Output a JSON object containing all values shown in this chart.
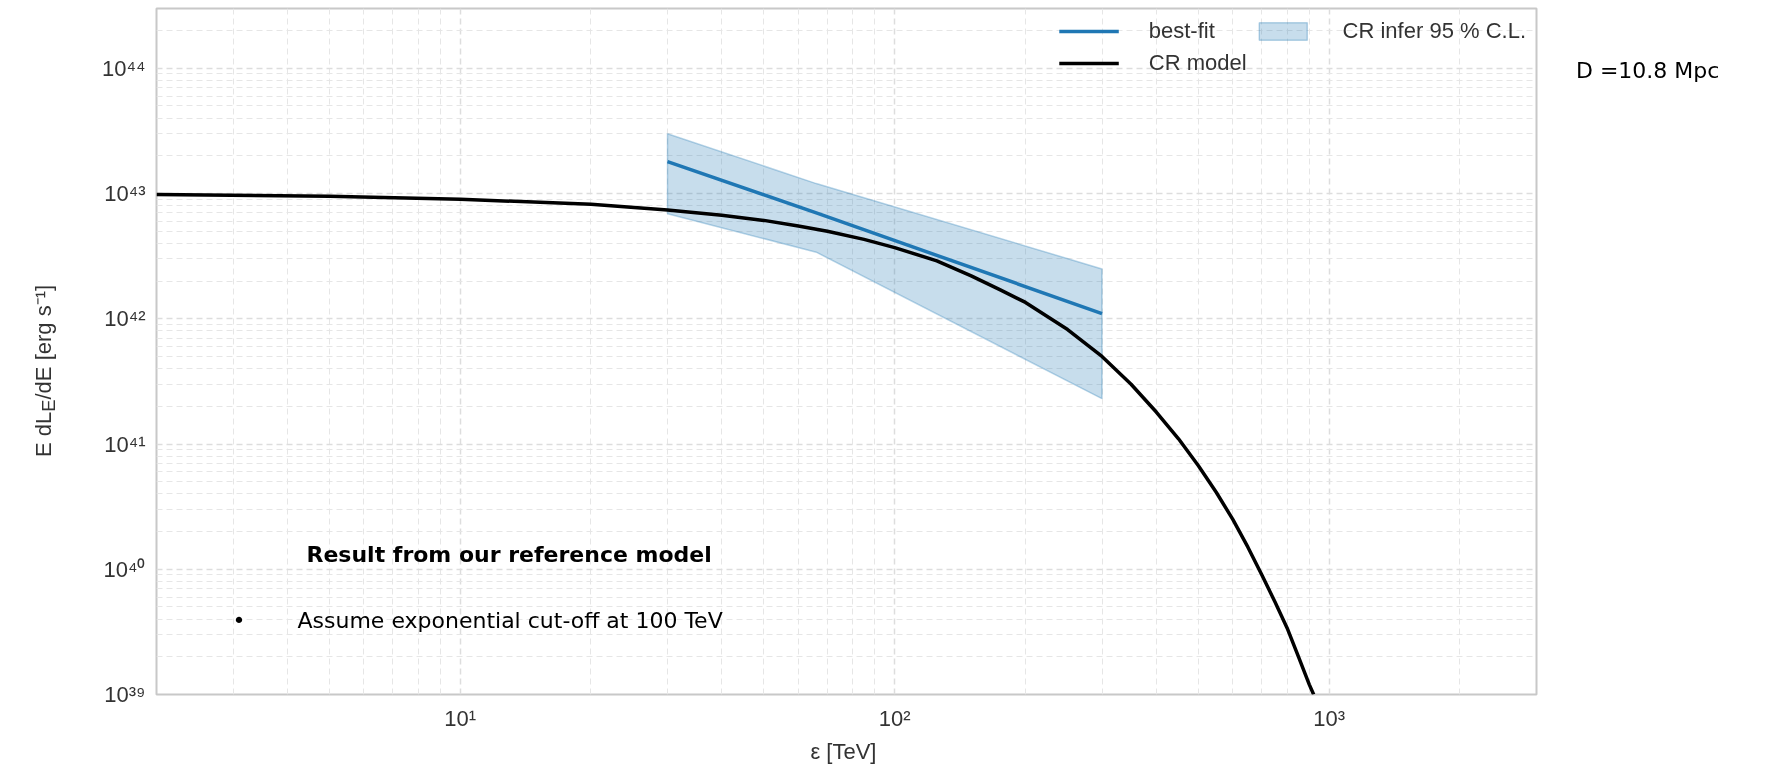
{
  "chart_data": {
    "type": "line",
    "xlabel": "ε  [TeV]",
    "ylabel": "E dL$_{E}$/dE  [erg s⁻¹]",
    "xlim": [
      2,
      3000
    ],
    "ylim": [
      1e+39,
      3e+44
    ],
    "log": "xy",
    "grid": true,
    "legend": "top right",
    "xticks": [
      {
        "value": 10,
        "label": "10¹"
      },
      {
        "value": 100,
        "label": "10²"
      },
      {
        "value": 1000,
        "label": "10³"
      }
    ],
    "yticks": [
      {
        "value": 1e+39,
        "label": "10³⁹"
      },
      {
        "value": 1e+40,
        "label": "10⁴⁰"
      },
      {
        "value": 1e+41,
        "label": "10⁴¹"
      },
      {
        "value": 1e+42,
        "label": "10⁴²"
      },
      {
        "value": 1e+43,
        "label": "10⁴³"
      },
      {
        "value": 1e+44,
        "label": "10⁴⁴"
      }
    ],
    "series": [
      {
        "name": "best-fit",
        "color": "#1f77b4",
        "x": [
          30,
          66,
          300
        ],
        "values": [
          1.8e+43,
          7e+42,
          1.1e+42
        ],
        "lower": [
          6.9e+42,
          3.4e+42,
          2.3e+41
        ],
        "upper": [
          3e+43,
          1.2e+43,
          2.5e+42
        ]
      },
      {
        "name": "CR model",
        "color": "#000000",
        "x": [
          2,
          5,
          10,
          20,
          30,
          40,
          50,
          60,
          70,
          85,
          100,
          125,
          150,
          175,
          200,
          250,
          300,
          350,
          400,
          450,
          500,
          550,
          600,
          650,
          700,
          750,
          800,
          850,
          900,
          921
        ],
        "values": [
          9.8e+42,
          9.5e+42,
          9e+42,
          8.2e+42,
          7.4e+42,
          6.7e+42,
          6.1e+42,
          5.5e+42,
          5e+42,
          4.3e+42,
          3.7e+42,
          2.9e+42,
          2.2e+42,
          1.7e+42,
          1.35e+42,
          8.2e+41,
          5e+41,
          3e+41,
          1.8e+41,
          1.1e+41,
          6.7e+40,
          4.1e+40,
          2.5e+40,
          1.5e+40,
          9e+39,
          5.5e+39,
          3.4e+39,
          2e+39,
          1.2e+39,
          1e+39
        ]
      },
      {
        "name": "CR infer 95 % C.L.",
        "type": "area",
        "color": "#1f77b4"
      }
    ],
    "annotations": [
      "Result from our reference model",
      "• Assume exponential cut-off at 100 TeV",
      "D =10.8 Mpc"
    ]
  }
}
